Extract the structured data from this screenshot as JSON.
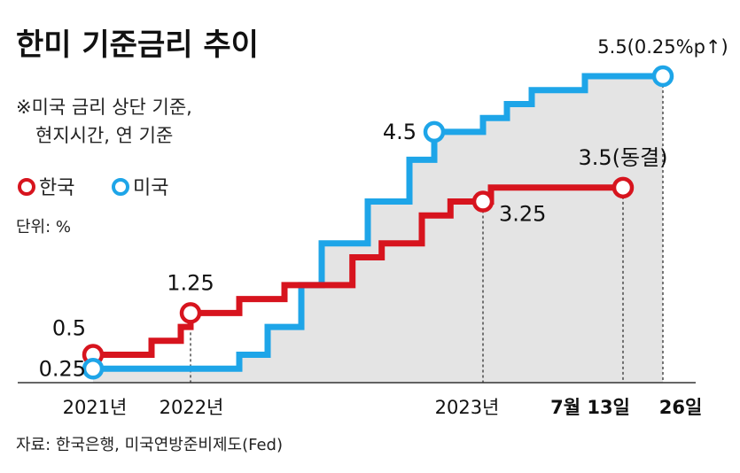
{
  "title": "한미 기준금리 추이",
  "notes": [
    "※미국 금리 상단 기준,",
    "현지시간, 연 기준"
  ],
  "legend": [
    {
      "label": "한국",
      "color": "#d7141e"
    },
    {
      "label": "미국",
      "color": "#1ea5e8"
    }
  ],
  "unit_label": "단위: %",
  "source": "자료: 한국은행, 미국연방준비제도(Fed)",
  "chart_data": {
    "type": "line",
    "step": true,
    "ylim": [
      0,
      6
    ],
    "series": [
      {
        "name": "한국",
        "color": "#d7141e",
        "x": [
          2021.0,
          2021.6,
          2021.9,
          2022.0,
          2022.2,
          2022.35,
          2022.55,
          2022.65,
          2022.8,
          2022.9,
          2023.0,
          2023.05,
          2023.55
        ],
        "values": [
          0.5,
          0.75,
          1.0,
          1.25,
          1.5,
          1.75,
          2.25,
          2.5,
          3.0,
          3.25,
          3.25,
          3.5,
          3.5
        ]
      },
      {
        "name": "미국",
        "color": "#1ea5e8",
        "x": [
          2021.0,
          2022.2,
          2022.3,
          2022.4,
          2022.45,
          2022.6,
          2022.75,
          2022.85,
          2023.0,
          2023.15,
          2023.3,
          2023.4,
          2023.58
        ],
        "values": [
          0.25,
          0.5,
          1.0,
          1.75,
          2.5,
          3.25,
          4.0,
          4.5,
          4.75,
          5.0,
          5.25,
          5.5,
          5.5
        ]
      }
    ],
    "annotations": [
      {
        "text": "0.5",
        "series": "한국"
      },
      {
        "text": "1.25",
        "series": "한국"
      },
      {
        "text": "3.25",
        "series": "한국"
      },
      {
        "text": "3.5(동결)",
        "series": "한국"
      },
      {
        "text": "0.25",
        "series": "미국"
      },
      {
        "text": "4.5",
        "series": "미국"
      },
      {
        "text": "5.5(0.25%p↑)",
        "series": "미국"
      }
    ],
    "x_ticks": [
      {
        "label": "2021년",
        "x": 2021.0
      },
      {
        "label": "2022년",
        "x": 2021.5
      },
      {
        "label": "2023년",
        "x": 2023.0
      },
      {
        "label": "7월 13일",
        "x": 2023.55
      },
      {
        "label": "26일",
        "x": 2023.58
      }
    ]
  }
}
